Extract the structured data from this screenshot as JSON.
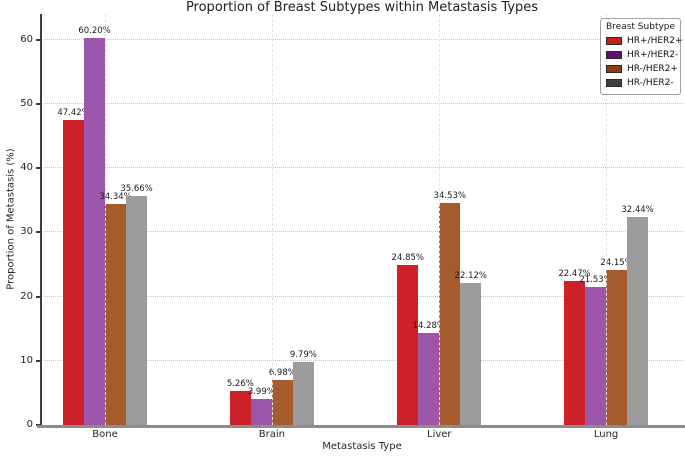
{
  "title": "Proportion of Breast Subtypes within Metastasis Types",
  "chart_data": {
    "type": "bar",
    "title": "Proportion of Breast Subtypes within Metastasis Types",
    "xlabel": "Metastasis Type",
    "ylabel": "Proportion of Metastasis (%)",
    "categories": [
      "Bone",
      "Brain",
      "Liver",
      "Lung"
    ],
    "series": [
      {
        "name": "HR+/HER2+",
        "bar_color": "#cc2128",
        "legend_color": "#c71c1c",
        "values": [
          47.42,
          5.26,
          24.85,
          22.47
        ],
        "labels": [
          "47.42%",
          "5.26%",
          "24.85%",
          "22.47%"
        ]
      },
      {
        "name": "HR+/HER2-",
        "bar_color": "#9c57ab",
        "legend_color": "#5e0f70",
        "values": [
          60.2,
          3.99,
          14.28,
          21.53
        ],
        "labels": [
          "60.20%",
          "3.99%",
          "14.28%",
          "21.53%"
        ]
      },
      {
        "name": "HR-/HER2+",
        "bar_color": "#a65b2d",
        "legend_color": "#8e3c12",
        "values": [
          34.34,
          6.98,
          34.53,
          24.15
        ],
        "labels": [
          "34.34%",
          "6.98%",
          "34.53%",
          "24.15%"
        ]
      },
      {
        "name": "HR-/HER2-",
        "bar_color": "#9c9c9c",
        "legend_color": "#3f3f3f",
        "values": [
          35.66,
          9.79,
          22.12,
          32.44
        ],
        "labels": [
          "35.66%",
          "9.79%",
          "22.12%",
          "32.44%"
        ]
      }
    ],
    "yticks": [
      0,
      10,
      20,
      30,
      40,
      50,
      60
    ],
    "ylim": [
      0,
      64
    ],
    "grid": true,
    "legend": {
      "title": "Breast Subtype",
      "position": "upper right"
    }
  }
}
